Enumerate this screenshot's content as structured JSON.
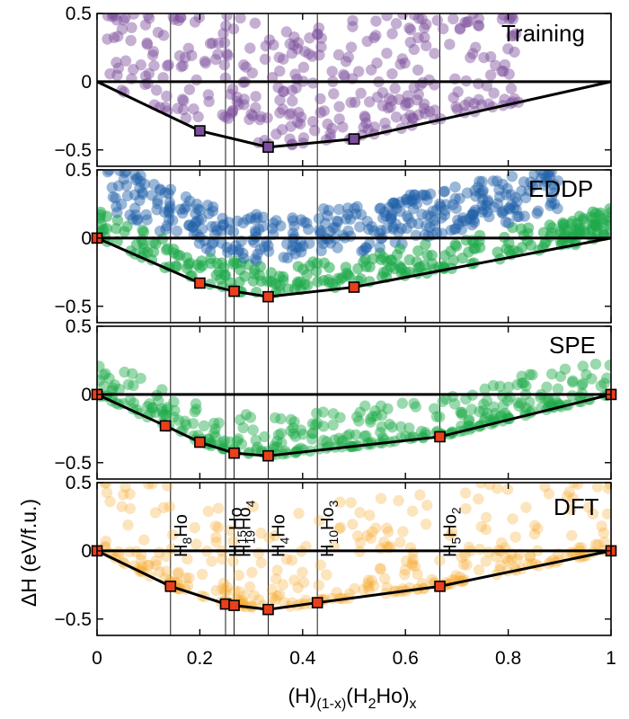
{
  "chart_data": {
    "type": "scatter",
    "layout": "4 vertically stacked panels sharing the x axis",
    "xlabel": "(H)(1-x)(H2Ho)x",
    "xlabel_parts": {
      "base1": "(H)",
      "sub1": "(1-x)",
      "base2": "(H",
      "sub2": "2",
      "base3": "Ho)",
      "sub3": "x"
    },
    "ylabel": "ΔH (eV/f.u.)",
    "xlim": [
      0,
      1
    ],
    "ylim": [
      -0.62,
      0.5
    ],
    "x_ticks": [
      0,
      0.2,
      0.4,
      0.6,
      0.8,
      1
    ],
    "x_tick_labels": [
      "0",
      "0.2",
      "0.4",
      "0.6",
      "0.8",
      "1"
    ],
    "y_ticks": [
      0.5,
      0,
      -0.5
    ],
    "y_tick_labels": [
      "0.5",
      "0",
      "−0.5"
    ],
    "zero_line": 0,
    "reference_x": [
      0.143,
      0.25,
      0.2667,
      0.333,
      0.4286,
      0.667
    ],
    "annotations": [
      {
        "x": 0.143,
        "text": "H8Ho",
        "base": "H",
        "sub": "8",
        "tail": "Ho"
      },
      {
        "x": 0.25,
        "text": "H15Ho",
        "base": "H",
        "sub": "15",
        "tail": "Ho"
      },
      {
        "x": 0.2667,
        "text": "H19Ho4",
        "base": "H",
        "sub": "19",
        "tail": "Ho",
        "sub2": "4"
      },
      {
        "x": 0.333,
        "text": "H4Ho",
        "base": "H",
        "sub": "4",
        "tail": "Ho"
      },
      {
        "x": 0.4286,
        "text": "H10Ho3",
        "base": "H",
        "sub": "10",
        "tail": "Ho",
        "sub2": "3"
      },
      {
        "x": 0.667,
        "text": "H5Ho2",
        "base": "H",
        "sub": "5",
        "tail": "Ho",
        "sub2": "2"
      }
    ],
    "panels": [
      {
        "name": "Training",
        "label": "Training",
        "point_color": "#7d4e9c",
        "hull_marker_color": "#7d4e9c",
        "hull": [
          {
            "x": 0,
            "y": 0
          },
          {
            "x": 0.2,
            "y": -0.36
          },
          {
            "x": 0.333,
            "y": -0.48
          },
          {
            "x": 0.5,
            "y": -0.42
          },
          {
            "x": 1,
            "y": 0
          }
        ],
        "hull_markers": [
          {
            "x": 0.2,
            "y": -0.36
          },
          {
            "x": 0.333,
            "y": -0.48
          },
          {
            "x": 0.5,
            "y": -0.42
          }
        ]
      },
      {
        "name": "EDDP",
        "label": "EDDP",
        "point_colors": [
          "#1f5fa8",
          "#1faa4a"
        ],
        "hull_marker_color": "#e8401c",
        "hull": [
          {
            "x": 0,
            "y": 0
          },
          {
            "x": 0.2,
            "y": -0.33
          },
          {
            "x": 0.2667,
            "y": -0.39
          },
          {
            "x": 0.333,
            "y": -0.43
          },
          {
            "x": 0.5,
            "y": -0.36
          },
          {
            "x": 1,
            "y": 0
          }
        ],
        "hull_markers": [
          {
            "x": 0,
            "y": 0
          },
          {
            "x": 0.2,
            "y": -0.33
          },
          {
            "x": 0.2667,
            "y": -0.39
          },
          {
            "x": 0.333,
            "y": -0.43
          },
          {
            "x": 0.5,
            "y": -0.36
          }
        ]
      },
      {
        "name": "SPE",
        "label": "SPE",
        "point_color": "#1faa4a",
        "hull_marker_color": "#e8401c",
        "hull": [
          {
            "x": 0,
            "y": 0
          },
          {
            "x": 0.133,
            "y": -0.23
          },
          {
            "x": 0.2,
            "y": -0.35
          },
          {
            "x": 0.2667,
            "y": -0.43
          },
          {
            "x": 0.333,
            "y": -0.45
          },
          {
            "x": 0.667,
            "y": -0.31
          },
          {
            "x": 1,
            "y": 0
          }
        ],
        "hull_markers": [
          {
            "x": 0,
            "y": 0
          },
          {
            "x": 0.133,
            "y": -0.23
          },
          {
            "x": 0.2,
            "y": -0.35
          },
          {
            "x": 0.2667,
            "y": -0.43
          },
          {
            "x": 0.333,
            "y": -0.45
          },
          {
            "x": 0.667,
            "y": -0.31
          },
          {
            "x": 1,
            "y": 0
          }
        ]
      },
      {
        "name": "DFT",
        "label": "DFT",
        "point_color": "#f5a623",
        "hull_marker_color": "#e8401c",
        "hull": [
          {
            "x": 0,
            "y": 0
          },
          {
            "x": 0.143,
            "y": -0.26
          },
          {
            "x": 0.25,
            "y": -0.39
          },
          {
            "x": 0.2667,
            "y": -0.4
          },
          {
            "x": 0.333,
            "y": -0.43
          },
          {
            "x": 0.4286,
            "y": -0.38
          },
          {
            "x": 0.667,
            "y": -0.26
          },
          {
            "x": 1,
            "y": 0
          }
        ],
        "hull_markers": [
          {
            "x": 0,
            "y": 0
          },
          {
            "x": 0.143,
            "y": -0.26
          },
          {
            "x": 0.25,
            "y": -0.39
          },
          {
            "x": 0.2667,
            "y": -0.4
          },
          {
            "x": 0.333,
            "y": -0.43
          },
          {
            "x": 0.4286,
            "y": -0.38
          },
          {
            "x": 0.667,
            "y": -0.26
          },
          {
            "x": 1,
            "y": 0
          }
        ]
      }
    ]
  }
}
